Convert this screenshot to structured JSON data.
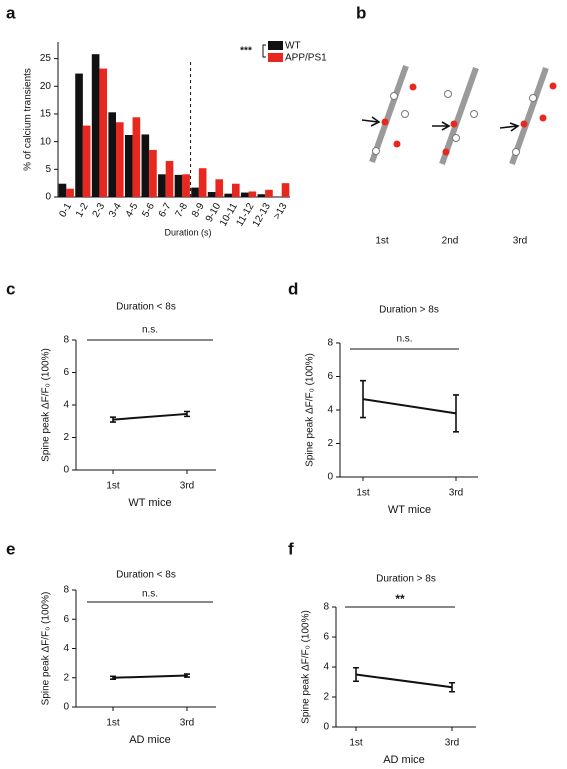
{
  "panel_labels": [
    "a",
    "b",
    "c",
    "d",
    "e",
    "f"
  ],
  "diagram": {
    "labels": [
      "1st",
      "2nd",
      "3rd"
    ]
  },
  "chart_data": [
    {
      "type": "bar",
      "ylabel": "% of calcium transients",
      "xlabel": "Duration (s)",
      "annotation": "***",
      "categories": [
        "0-1",
        "1-2",
        "2-3",
        "3-4",
        "4-5",
        "5-6",
        "6-7",
        "7-8",
        "8-9",
        "9-10",
        "10-11",
        "11-12",
        "12-13",
        ">13"
      ],
      "series": [
        {
          "name": "WT",
          "color": "#111111",
          "values": [
            2.4,
            22.3,
            25.8,
            15.3,
            11.2,
            11.3,
            4.1,
            4.0,
            1.7,
            0.9,
            0.6,
            0.8,
            0.5,
            0
          ]
        },
        {
          "name": "APP/PS1",
          "color": "#e8281e",
          "values": [
            1.5,
            12.9,
            23.2,
            13.5,
            14.4,
            8.5,
            6.5,
            4.1,
            5.2,
            3.2,
            2.4,
            1.0,
            1.3,
            2.5
          ]
        }
      ],
      "ylim": [
        0,
        28
      ],
      "yticks": [
        0,
        5,
        10,
        15,
        20,
        25
      ]
    },
    {
      "type": "line",
      "title": "Duration < 8s",
      "annotation": "n.s.",
      "ylabel": "Spine peak ΔF/F₀ (100%)",
      "xlabel": "WT mice",
      "categories": [
        "1st",
        "3rd"
      ],
      "values": [
        3.1,
        3.45
      ],
      "errors": [
        0.15,
        0.15
      ],
      "color": "#111111",
      "ylim": [
        0,
        8
      ],
      "yticks": [
        0,
        2,
        4,
        6,
        8
      ]
    },
    {
      "type": "line",
      "title": "Duration > 8s",
      "annotation": "n.s.",
      "ylabel": "Spine peak ΔF/F₀ (100%)",
      "xlabel": "WT mice",
      "categories": [
        "1st",
        "3rd"
      ],
      "values": [
        4.65,
        3.8
      ],
      "errors": [
        1.1,
        1.1
      ],
      "color": "#111111",
      "ylim": [
        0,
        8
      ],
      "yticks": [
        0,
        2,
        4,
        6,
        8
      ]
    },
    {
      "type": "line",
      "title": "Duration < 8s",
      "annotation": "n.s.",
      "ylabel": "Spine peak ΔF/F₀ (100%)",
      "xlabel": "AD mice",
      "categories": [
        "1st",
        "3rd"
      ],
      "values": [
        2.0,
        2.15
      ],
      "errors": [
        0.1,
        0.1
      ],
      "color": "#111111",
      "ylim": [
        0,
        8
      ],
      "yticks": [
        0,
        2,
        4,
        6,
        8
      ]
    },
    {
      "type": "line",
      "title": "Duration > 8s",
      "annotation": "**",
      "ylabel": "Spine peak ΔF/F₀ (100%)",
      "xlabel": "AD mice",
      "categories": [
        "1st",
        "3rd"
      ],
      "values": [
        3.5,
        2.65
      ],
      "errors": [
        0.45,
        0.3
      ],
      "color": "#111111",
      "ylim": [
        0,
        8
      ],
      "yticks": [
        0,
        2,
        4,
        6,
        8
      ]
    }
  ]
}
